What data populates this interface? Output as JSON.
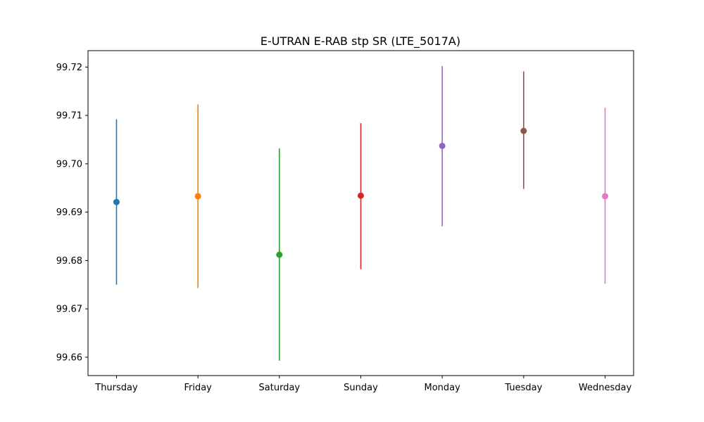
{
  "chart_data": {
    "type": "scatter",
    "title": "E-UTRAN E-RAB stp SR (LTE_5017A)",
    "xlabel": "",
    "ylabel": "",
    "categories": [
      "Thursday",
      "Friday",
      "Saturday",
      "Sunday",
      "Monday",
      "Tuesday",
      "Wednesday"
    ],
    "values": [
      99.6921,
      99.6933,
      99.6812,
      99.6934,
      99.7037,
      99.7068,
      99.6933
    ],
    "error_low": [
      99.675,
      99.6743,
      99.6593,
      99.6782,
      99.6871,
      99.6948,
      99.6752
    ],
    "error_high": [
      99.7092,
      99.7123,
      99.7032,
      99.7084,
      99.7202,
      99.7191,
      99.7116
    ],
    "colors": [
      "#1f77b4",
      "#ff7f0e",
      "#2ca02c",
      "#d62728",
      "#9467bd",
      "#8c564b",
      "#e377c2"
    ],
    "ylim": [
      99.6562,
      99.7234
    ],
    "yticks": [
      99.66,
      99.67,
      99.68,
      99.69,
      99.7,
      99.71,
      99.72
    ],
    "ytick_labels": [
      "99.66",
      "99.67",
      "99.68",
      "99.69",
      "99.70",
      "99.71",
      "99.72"
    ],
    "grid": false,
    "legend": "none"
  }
}
